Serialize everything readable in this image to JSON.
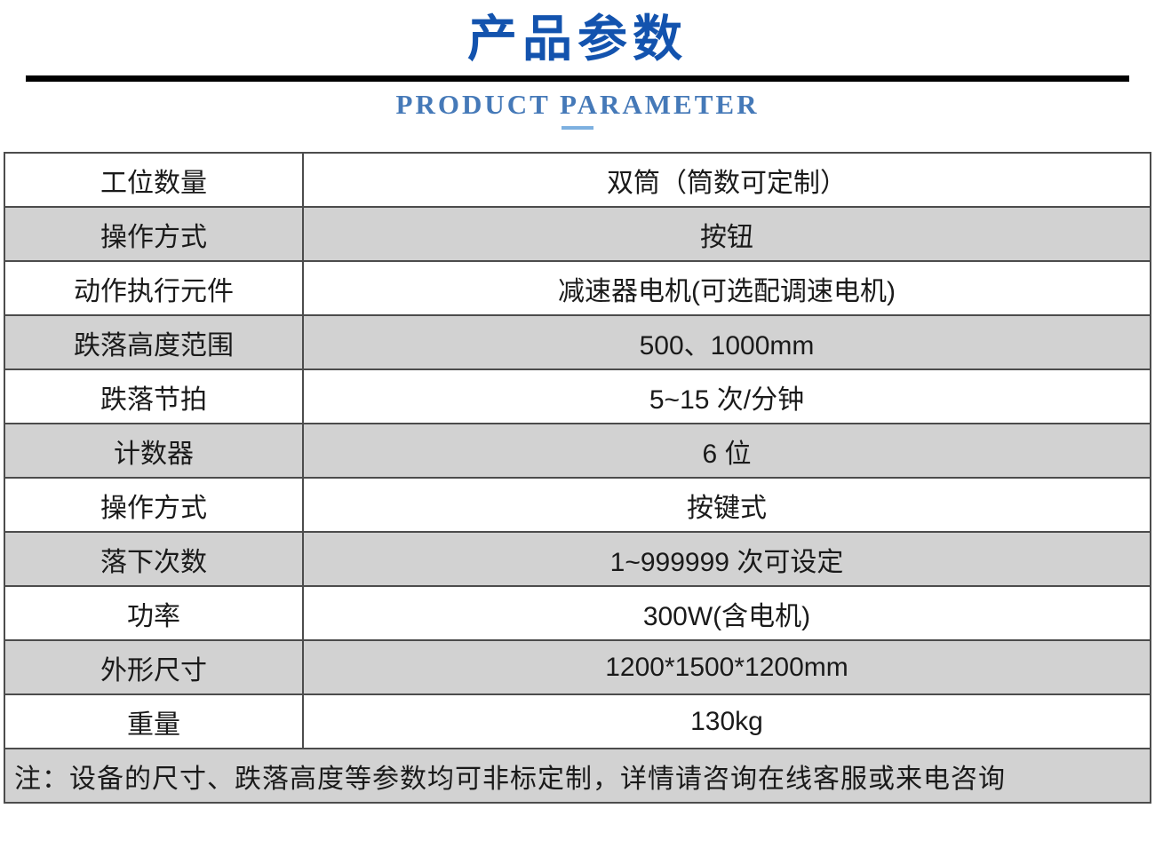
{
  "header": {
    "title": "产品参数",
    "subtitle": "PRODUCT PARAMETER"
  },
  "colors": {
    "title_blue": "#1353ae",
    "subtitle_blue": "#4579b8",
    "underline_blue": "#7db0e0",
    "divider_black": "#000000",
    "row_gray": "#d2d2d2",
    "cell_border": "#4c4c4c",
    "text_dark": "#1a1a1a"
  },
  "table": {
    "rows": [
      {
        "label": "工位数量",
        "value": "双筒（筒数可定制）"
      },
      {
        "label": "操作方式",
        "value": "按钮"
      },
      {
        "label": "动作执行元件",
        "value": "减速器电机(可选配调速电机)"
      },
      {
        "label": "跌落高度范围",
        "value": "500、1000mm"
      },
      {
        "label": "跌落节拍",
        "value": "5~15 次/分钟"
      },
      {
        "label": "计数器",
        "value": "6 位"
      },
      {
        "label": "操作方式",
        "value": "按键式"
      },
      {
        "label": "落下次数",
        "value": "1~999999 次可设定"
      },
      {
        "label": "功率",
        "value": "300W(含电机)"
      },
      {
        "label": "外形尺寸",
        "value": "1200*1500*1200mm"
      },
      {
        "label": "重量",
        "value": "130kg"
      }
    ],
    "note": "注：设备的尺寸、跌落高度等参数均可非标定制，详情请咨询在线客服或来电咨询"
  }
}
